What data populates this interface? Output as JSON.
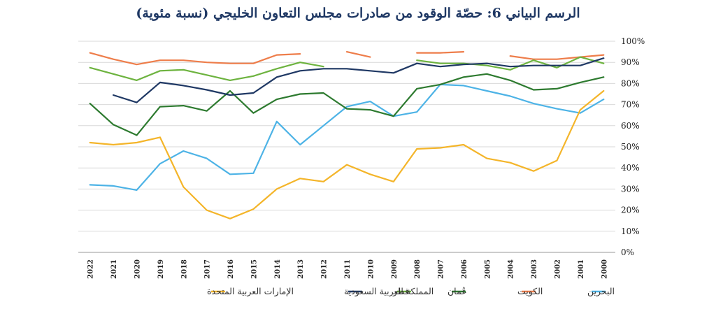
{
  "chart_data": {
    "type": "line",
    "title": "الرسم البياني 6: حصّة الوقود من صادرات مجلس التعاون الخليجي (نسبة مئوية)",
    "xlabel": "",
    "ylabel": "",
    "ylim": [
      0,
      100
    ],
    "y_tick_step": 10,
    "y_tick_suffix": "%",
    "x_direction": "right-to-left",
    "legend_position": "bottom",
    "grid": true,
    "categories": [
      "2000",
      "2001",
      "2002",
      "2003",
      "2004",
      "2005",
      "2006",
      "2007",
      "2008",
      "2009",
      "2010",
      "2011",
      "2012",
      "2013",
      "2014",
      "2015",
      "2016",
      "2017",
      "2018",
      "2019",
      "2020",
      "2021",
      "2022"
    ],
    "series": [
      {
        "name": "البحرين",
        "color": "#4db3e6",
        "values": [
          72.5,
          66,
          68,
          70.5,
          74,
          76.5,
          79,
          79.5,
          66.5,
          64.5,
          71.5,
          69,
          60,
          51,
          62,
          37.5,
          37,
          44.5,
          48,
          42,
          29.5,
          31.5,
          32
        ]
      },
      {
        "name": "الكويت",
        "color": "#ee7d4a",
        "values": [
          93.5,
          92.5,
          91.5,
          91.5,
          93,
          null,
          95,
          94.5,
          94.5,
          null,
          92.5,
          95,
          null,
          94,
          93.5,
          89.5,
          89.5,
          90,
          91,
          91,
          89,
          91.5,
          94.5
        ]
      },
      {
        "name": "عُمان",
        "color": "#2d7a2f",
        "values": [
          83,
          80.5,
          77.5,
          77,
          81.5,
          84.5,
          83,
          79.5,
          77.5,
          64.5,
          67.5,
          68,
          75.5,
          75,
          72.5,
          66,
          76.5,
          67,
          69.5,
          69,
          55.5,
          60.5,
          70.5
        ]
      },
      {
        "name": "قطر",
        "color": "#6db33f",
        "values": [
          89.5,
          92.5,
          87.5,
          91,
          86.5,
          88.5,
          89.5,
          89.5,
          91,
          null,
          null,
          null,
          88,
          90,
          87,
          83.5,
          81.5,
          84,
          86.5,
          86,
          81.5,
          84.5,
          87.5
        ]
      },
      {
        "name": "المملكة العربية السعودية",
        "color": "#1f3864",
        "values": [
          92,
          88.5,
          88.5,
          88.5,
          88,
          89.5,
          89,
          88,
          89.5,
          85,
          86,
          87,
          87,
          86,
          83,
          75.5,
          74.5,
          77,
          79,
          80.5,
          71,
          74.5,
          null
        ]
      },
      {
        "name": "الإمارات العربية المتحدة",
        "color": "#f4b52a",
        "values": [
          76.5,
          67.5,
          43.5,
          38.5,
          42.5,
          44.5,
          51,
          49.5,
          49,
          33.5,
          37,
          41.5,
          33.5,
          35,
          30,
          20.5,
          16,
          20,
          31,
          54.5,
          52,
          51,
          52
        ]
      }
    ]
  }
}
